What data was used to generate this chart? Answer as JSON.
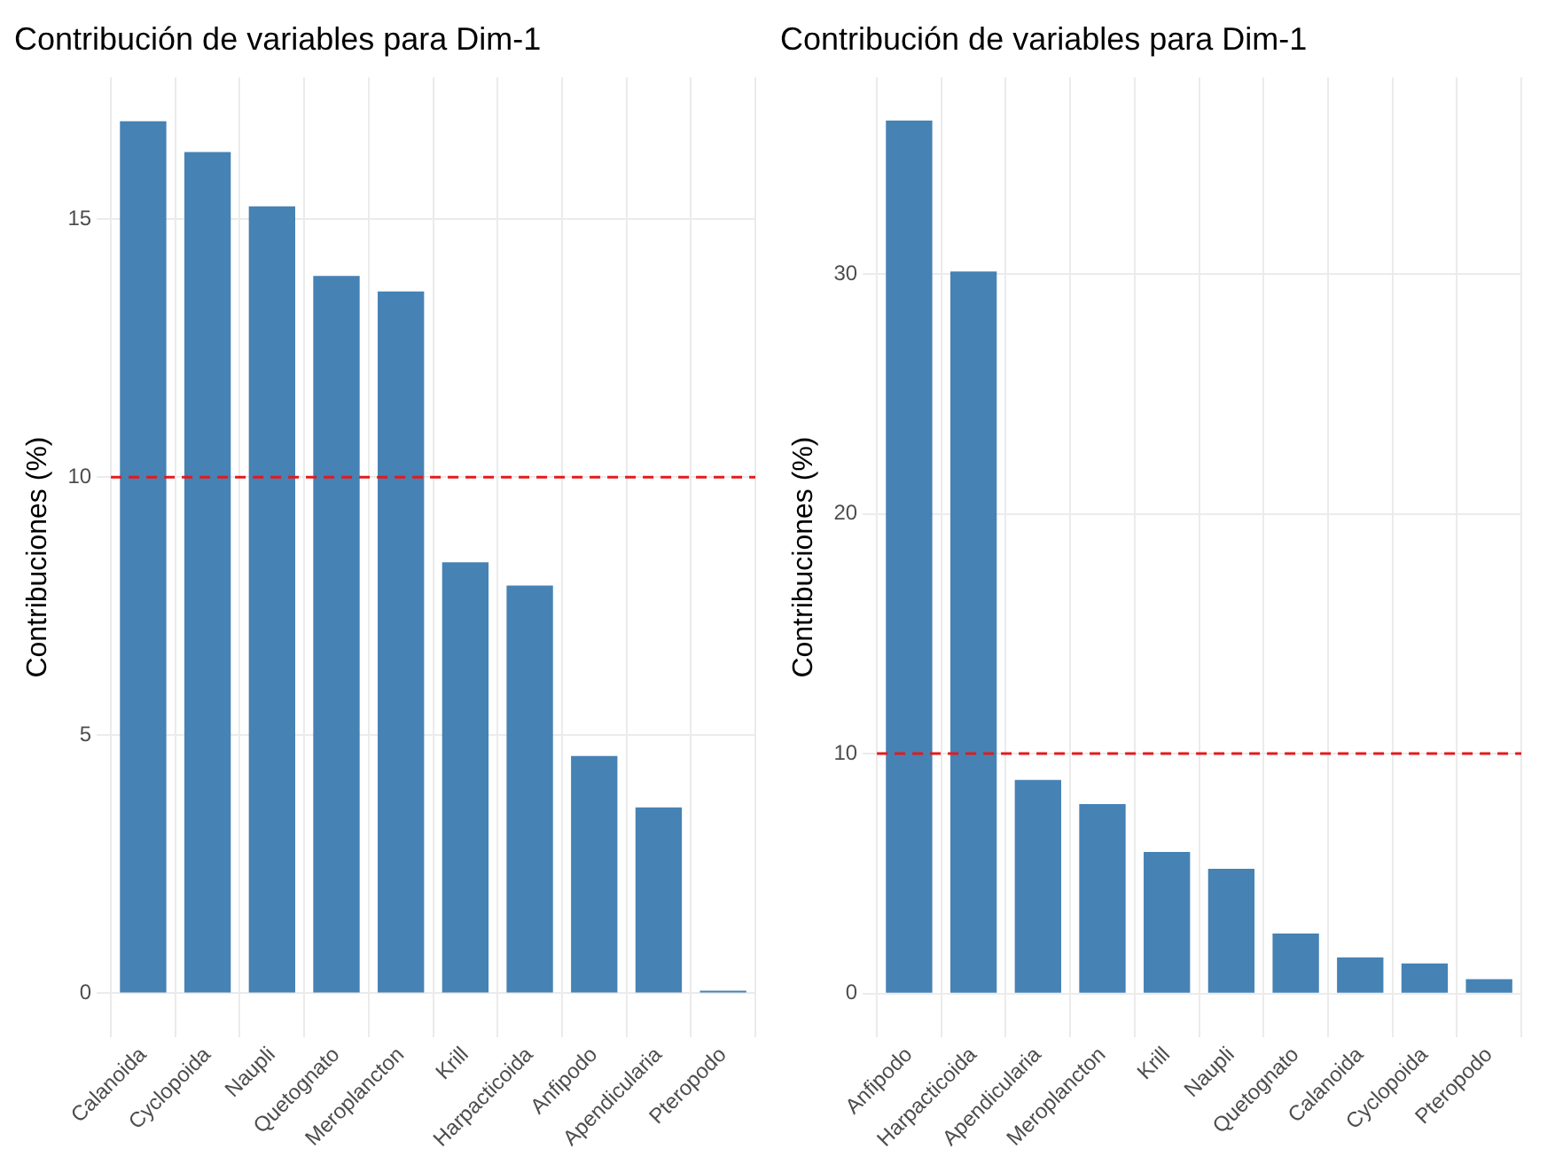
{
  "chart_data": [
    {
      "type": "bar",
      "title": "Contribución de variables para Dim-1",
      "ylabel": "Contribuciones (%)",
      "categories": [
        "Calanoida",
        "Cyclopoida",
        "Naupli",
        "Quetognato",
        "Meroplancton",
        "Krill",
        "Harpacticoida",
        "Anfipodo",
        "Apendicularia",
        "Pteropodo"
      ],
      "values": [
        16.9,
        16.3,
        15.25,
        13.9,
        13.6,
        8.35,
        7.9,
        4.6,
        3.6,
        0.05
      ],
      "color": "#4682b4",
      "ylim": [
        -0.85,
        17.75
      ],
      "yticks": [
        0,
        5,
        10,
        15
      ],
      "grid": true,
      "legend": false,
      "ref_lines": [
        {
          "axis": "y",
          "value": 10,
          "color": "#e41a1c",
          "line_style": "dashed"
        }
      ]
    },
    {
      "type": "bar",
      "title": "Contribución de variables para Dim-1",
      "ylabel": "Contribuciones (%)",
      "categories": [
        "Anfipodo",
        "Harpacticoida",
        "Apendicularia",
        "Meroplancton",
        "Krill",
        "Naupli",
        "Quetognato",
        "Calanoida",
        "Cyclopoida",
        "Pteropodo"
      ],
      "values": [
        36.4,
        30.1,
        8.9,
        7.9,
        5.9,
        5.2,
        2.5,
        1.5,
        1.25,
        0.6
      ],
      "color": "#4682b4",
      "ylim": [
        -1.82,
        38.2
      ],
      "yticks": [
        0,
        10,
        20,
        30
      ],
      "grid": true,
      "legend": false,
      "ref_lines": [
        {
          "axis": "y",
          "value": 10,
          "color": "#e41a1c",
          "line_style": "dashed"
        }
      ]
    }
  ]
}
